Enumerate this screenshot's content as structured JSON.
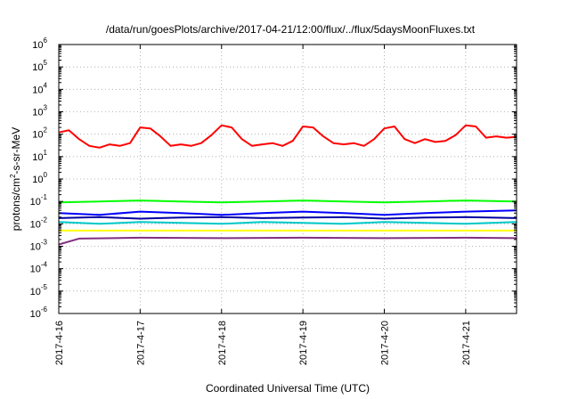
{
  "chart_data": {
    "type": "line",
    "title": "/data/run/goesPlots/archive/2017-04-21/12:00/flux/../flux/5daysMoonFluxes.txt",
    "xlabel": "Coordinated Universal Time (UTC)",
    "ylabel": {
      "prefix": "protons/cm",
      "sup": "2",
      "suffix": "-s-sr-MeV"
    },
    "xlim": [
      "2017-04-16",
      "2017-04-21T15:00"
    ],
    "ylim": [
      1e-06,
      1000000.0
    ],
    "yscale": "log",
    "grid": true,
    "x_ticks": [
      {
        "date": "2017-04-16",
        "label": "2017-4-16"
      },
      {
        "date": "2017-04-17",
        "label": "2017-4-17"
      },
      {
        "date": "2017-04-18",
        "label": "2017-4-18"
      },
      {
        "date": "2017-04-19",
        "label": "2017-4-19"
      },
      {
        "date": "2017-04-20",
        "label": "2017-4-20"
      },
      {
        "date": "2017-04-21",
        "label": "2017-4-21"
      }
    ],
    "y_ticks": [
      {
        "value": 1e-06,
        "base": "10",
        "exp": "-6"
      },
      {
        "value": 1e-05,
        "base": "10",
        "exp": "-5"
      },
      {
        "value": 0.0001,
        "base": "10",
        "exp": "-4"
      },
      {
        "value": 0.001,
        "base": "10",
        "exp": "-3"
      },
      {
        "value": 0.01,
        "base": "10",
        "exp": "-2"
      },
      {
        "value": 0.1,
        "base": "10",
        "exp": "-1"
      },
      {
        "value": 1,
        "base": "10",
        "exp": "0"
      },
      {
        "value": 10.0,
        "base": "10",
        "exp": "1"
      },
      {
        "value": 100.0,
        "base": "10",
        "exp": "2"
      },
      {
        "value": 1000.0,
        "base": "10",
        "exp": "3"
      },
      {
        "value": 10000.0,
        "base": "10",
        "exp": "4"
      },
      {
        "value": 100000.0,
        "base": "10",
        "exp": "5"
      },
      {
        "value": 1000000.0,
        "base": "10",
        "exp": "6"
      }
    ],
    "series": [
      {
        "color": "#ff0000",
        "x": [
          "2017-04-16T00:00",
          "2017-04-16T03:00",
          "2017-04-16T06:00",
          "2017-04-16T09:00",
          "2017-04-16T12:00",
          "2017-04-16T15:00",
          "2017-04-16T18:00",
          "2017-04-16T21:00",
          "2017-04-17T00:00",
          "2017-04-17T03:00",
          "2017-04-17T06:00",
          "2017-04-17T09:00",
          "2017-04-17T12:00",
          "2017-04-17T15:00",
          "2017-04-17T18:00",
          "2017-04-17T21:00",
          "2017-04-18T00:00",
          "2017-04-18T03:00",
          "2017-04-18T06:00",
          "2017-04-18T09:00",
          "2017-04-18T12:00",
          "2017-04-18T15:00",
          "2017-04-18T18:00",
          "2017-04-18T21:00",
          "2017-04-19T00:00",
          "2017-04-19T03:00",
          "2017-04-19T06:00",
          "2017-04-19T09:00",
          "2017-04-19T12:00",
          "2017-04-19T15:00",
          "2017-04-19T18:00",
          "2017-04-19T21:00",
          "2017-04-20T00:00",
          "2017-04-20T03:00",
          "2017-04-20T06:00",
          "2017-04-20T09:00",
          "2017-04-20T12:00",
          "2017-04-20T15:00",
          "2017-04-20T18:00",
          "2017-04-20T21:00",
          "2017-04-21T00:00",
          "2017-04-21T03:00",
          "2017-04-21T06:00",
          "2017-04-21T09:00",
          "2017-04-21T12:00",
          "2017-04-21T15:00"
        ],
        "values": [
          120,
          150,
          60,
          30,
          25,
          35,
          30,
          40,
          200,
          180,
          80,
          30,
          35,
          30,
          40,
          90,
          250,
          200,
          60,
          30,
          35,
          40,
          30,
          50,
          220,
          200,
          80,
          40,
          35,
          40,
          30,
          60,
          180,
          220,
          60,
          40,
          60,
          45,
          50,
          90,
          250,
          220,
          70,
          80,
          70,
          75
        ]
      },
      {
        "color": "#00ff00",
        "x": [
          "2017-04-16T00:00",
          "2017-04-16T12:00",
          "2017-04-17T00:00",
          "2017-04-17T12:00",
          "2017-04-18T00:00",
          "2017-04-18T12:00",
          "2017-04-19T00:00",
          "2017-04-19T12:00",
          "2017-04-20T00:00",
          "2017-04-20T12:00",
          "2017-04-21T00:00",
          "2017-04-21T15:00"
        ],
        "values": [
          0.09,
          0.1,
          0.11,
          0.1,
          0.09,
          0.1,
          0.11,
          0.1,
          0.09,
          0.1,
          0.11,
          0.1
        ]
      },
      {
        "color": "#00c8c8",
        "x": [
          "2017-04-16T00:00",
          "2017-04-16T12:00",
          "2017-04-17T00:00",
          "2017-04-17T12:00",
          "2017-04-18T00:00",
          "2017-04-18T12:00",
          "2017-04-19T00:00",
          "2017-04-19T12:00",
          "2017-04-20T00:00",
          "2017-04-20T12:00",
          "2017-04-21T00:00",
          "2017-04-21T15:00"
        ],
        "values": [
          0.012,
          0.01,
          0.012,
          0.011,
          0.01,
          0.012,
          0.011,
          0.01,
          0.012,
          0.011,
          0.01,
          0.012
        ]
      },
      {
        "color": "#0000ff",
        "x": [
          "2017-04-16T00:00",
          "2017-04-16T12:00",
          "2017-04-17T00:00",
          "2017-04-17T12:00",
          "2017-04-18T00:00",
          "2017-04-18T12:00",
          "2017-04-19T00:00",
          "2017-04-19T12:00",
          "2017-04-20T00:00",
          "2017-04-20T12:00",
          "2017-04-21T00:00",
          "2017-04-21T15:00"
        ],
        "values": [
          0.03,
          0.025,
          0.035,
          0.03,
          0.025,
          0.03,
          0.035,
          0.03,
          0.025,
          0.03,
          0.035,
          0.04
        ]
      },
      {
        "color": "#0000a0",
        "x": [
          "2017-04-16T00:00",
          "2017-04-16T12:00",
          "2017-04-17T00:00",
          "2017-04-17T12:00",
          "2017-04-18T00:00",
          "2017-04-18T12:00",
          "2017-04-19T00:00",
          "2017-04-19T12:00",
          "2017-04-20T00:00",
          "2017-04-20T12:00",
          "2017-04-21T00:00",
          "2017-04-21T15:00"
        ],
        "values": [
          0.018,
          0.02,
          0.017,
          0.019,
          0.02,
          0.018,
          0.019,
          0.02,
          0.017,
          0.019,
          0.02,
          0.018
        ]
      },
      {
        "color": "#ffff00",
        "x": [
          "2017-04-16T00:00",
          "2017-04-21T15:00"
        ],
        "values": [
          0.005,
          0.005
        ]
      },
      {
        "color": "#803080",
        "x": [
          "2017-04-16T00:00",
          "2017-04-16T06:00",
          "2017-04-17T00:00",
          "2017-04-18T00:00",
          "2017-04-19T00:00",
          "2017-04-20T00:00",
          "2017-04-21T00:00",
          "2017-04-21T15:00"
        ],
        "values": [
          0.0012,
          0.0022,
          0.0024,
          0.0023,
          0.0024,
          0.0023,
          0.0024,
          0.0023
        ]
      }
    ]
  }
}
